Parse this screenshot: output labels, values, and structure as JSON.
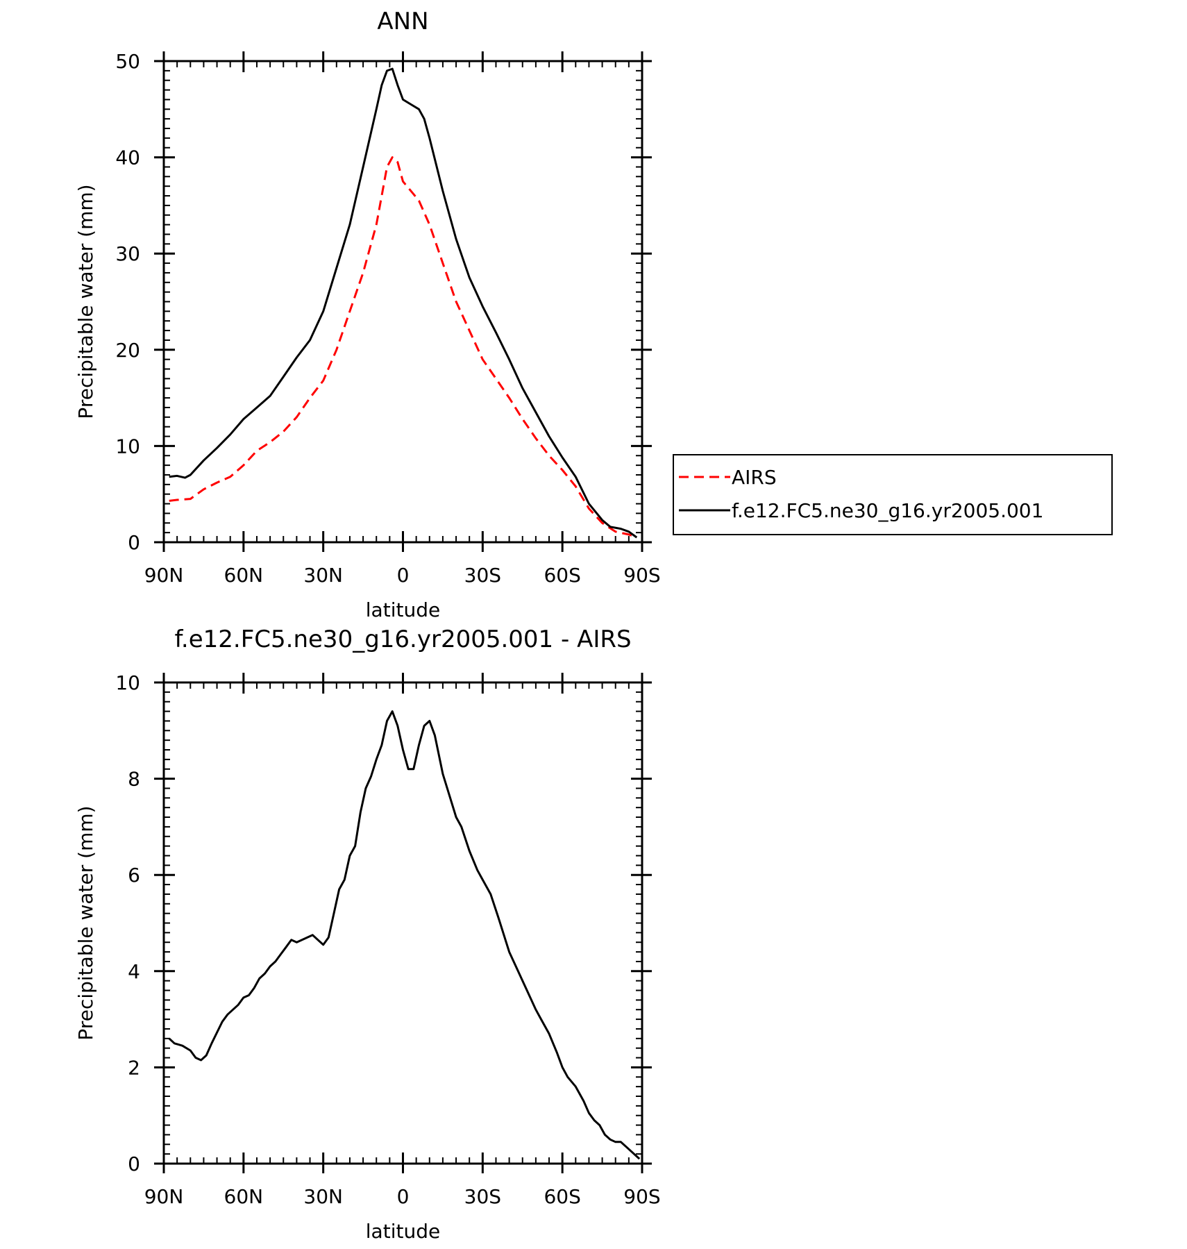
{
  "chart_data": [
    {
      "type": "line",
      "title": "ANN",
      "xlabel": "latitude",
      "ylabel": "Precipitable water (mm)",
      "xlim": [
        90,
        -90
      ],
      "ylim": [
        0,
        50
      ],
      "xticks": [
        90,
        60,
        30,
        0,
        -30,
        -60,
        -90
      ],
      "xticklabels": [
        "90N",
        "60N",
        "30N",
        "0",
        "30S",
        "60S",
        "90S"
      ],
      "yticks": [
        0,
        10,
        20,
        30,
        40,
        50
      ],
      "yticklabels": [
        "0",
        "10",
        "20",
        "30",
        "40",
        "50"
      ],
      "legend": {
        "placement": "right",
        "entries": [
          "AIRS",
          "f.e12.FC5.ne30_g16.yr2005.001"
        ]
      },
      "series": [
        {
          "name": "AIRS",
          "color": "#ff0000",
          "dash": "dashed",
          "points": [
            [
              88,
              4.3
            ],
            [
              85,
              4.4
            ],
            [
              80,
              4.5
            ],
            [
              75,
              5.5
            ],
            [
              70,
              6.2
            ],
            [
              65,
              6.8
            ],
            [
              60,
              8.0
            ],
            [
              55,
              9.5
            ],
            [
              50,
              10.4
            ],
            [
              45,
              11.5
            ],
            [
              40,
              13.0
            ],
            [
              35,
              15.0
            ],
            [
              30,
              16.8
            ],
            [
              25,
              20.0
            ],
            [
              20,
              24.0
            ],
            [
              15,
              28.0
            ],
            [
              10,
              33.0
            ],
            [
              8,
              36.0
            ],
            [
              6,
              39.0
            ],
            [
              4,
              40.0
            ],
            [
              2,
              39.5
            ],
            [
              0,
              37.5
            ],
            [
              -3,
              36.5
            ],
            [
              -6,
              35.5
            ],
            [
              -10,
              33.0
            ],
            [
              -15,
              29.0
            ],
            [
              -20,
              25.0
            ],
            [
              -25,
              22.0
            ],
            [
              -30,
              19.0
            ],
            [
              -35,
              17.0
            ],
            [
              -40,
              15.0
            ],
            [
              -45,
              12.8
            ],
            [
              -50,
              10.8
            ],
            [
              -55,
              9.0
            ],
            [
              -60,
              7.5
            ],
            [
              -65,
              5.8
            ],
            [
              -70,
              3.5
            ],
            [
              -75,
              2.0
            ],
            [
              -80,
              1.1
            ],
            [
              -85,
              0.8
            ],
            [
              -88,
              0.5
            ]
          ]
        },
        {
          "name": "f.e12.FC5.ne30_g16.yr2005.001",
          "color": "#000000",
          "dash": "solid",
          "points": [
            [
              88,
              6.8
            ],
            [
              85,
              6.9
            ],
            [
              82,
              6.7
            ],
            [
              80,
              7.0
            ],
            [
              75,
              8.5
            ],
            [
              70,
              9.8
            ],
            [
              65,
              11.2
            ],
            [
              60,
              12.8
            ],
            [
              55,
              14.0
            ],
            [
              50,
              15.2
            ],
            [
              45,
              17.2
            ],
            [
              40,
              19.2
            ],
            [
              35,
              21.0
            ],
            [
              30,
              24.0
            ],
            [
              25,
              28.5
            ],
            [
              20,
              33.0
            ],
            [
              15,
              39.0
            ],
            [
              10,
              45.0
            ],
            [
              8,
              47.5
            ],
            [
              6,
              49.0
            ],
            [
              4,
              49.2
            ],
            [
              2,
              47.5
            ],
            [
              0,
              46.0
            ],
            [
              -3,
              45.5
            ],
            [
              -6,
              45.0
            ],
            [
              -8,
              44.0
            ],
            [
              -10,
              42.0
            ],
            [
              -15,
              36.5
            ],
            [
              -20,
              31.5
            ],
            [
              -25,
              27.5
            ],
            [
              -30,
              24.5
            ],
            [
              -35,
              21.8
            ],
            [
              -40,
              19.0
            ],
            [
              -45,
              16.0
            ],
            [
              -50,
              13.5
            ],
            [
              -55,
              11.0
            ],
            [
              -60,
              8.8
            ],
            [
              -65,
              6.8
            ],
            [
              -70,
              4.0
            ],
            [
              -75,
              2.3
            ],
            [
              -78,
              1.6
            ],
            [
              -82,
              1.4
            ],
            [
              -85,
              1.1
            ],
            [
              -88,
              0.5
            ]
          ]
        }
      ]
    },
    {
      "type": "line",
      "title": "f.e12.FC5.ne30_g16.yr2005.001 - AIRS",
      "xlabel": "latitude",
      "ylabel": "Precipitable water (mm)",
      "xlim": [
        90,
        -90
      ],
      "ylim": [
        0,
        10
      ],
      "xticks": [
        90,
        60,
        30,
        0,
        -30,
        -60,
        -90
      ],
      "xticklabels": [
        "90N",
        "60N",
        "30N",
        "0",
        "30S",
        "60S",
        "90S"
      ],
      "yticks": [
        0,
        2,
        4,
        6,
        8,
        10
      ],
      "yticklabels": [
        "0",
        "2",
        "4",
        "6",
        "8",
        "10"
      ],
      "series": [
        {
          "color": "#000000",
          "dash": "solid",
          "points": [
            [
              88,
              2.6
            ],
            [
              86,
              2.5
            ],
            [
              83,
              2.45
            ],
            [
              80,
              2.35
            ],
            [
              78,
              2.2
            ],
            [
              76,
              2.15
            ],
            [
              74,
              2.25
            ],
            [
              72,
              2.5
            ],
            [
              68,
              2.95
            ],
            [
              66,
              3.1
            ],
            [
              62,
              3.3
            ],
            [
              60,
              3.45
            ],
            [
              58,
              3.5
            ],
            [
              56,
              3.65
            ],
            [
              54,
              3.85
            ],
            [
              52,
              3.95
            ],
            [
              50,
              4.1
            ],
            [
              48,
              4.2
            ],
            [
              46,
              4.35
            ],
            [
              44,
              4.5
            ],
            [
              42,
              4.65
            ],
            [
              40,
              4.6
            ],
            [
              36,
              4.7
            ],
            [
              34,
              4.75
            ],
            [
              32,
              4.65
            ],
            [
              30,
              4.55
            ],
            [
              28,
              4.7
            ],
            [
              26,
              5.2
            ],
            [
              24,
              5.7
            ],
            [
              22,
              5.9
            ],
            [
              20,
              6.4
            ],
            [
              18,
              6.6
            ],
            [
              16,
              7.3
            ],
            [
              14,
              7.8
            ],
            [
              12,
              8.05
            ],
            [
              10,
              8.4
            ],
            [
              8,
              8.7
            ],
            [
              6,
              9.2
            ],
            [
              4,
              9.4
            ],
            [
              2,
              9.1
            ],
            [
              0,
              8.6
            ],
            [
              -2,
              8.2
            ],
            [
              -4,
              8.2
            ],
            [
              -6,
              8.7
            ],
            [
              -8,
              9.1
            ],
            [
              -10,
              9.2
            ],
            [
              -12,
              8.9
            ],
            [
              -15,
              8.1
            ],
            [
              -20,
              7.2
            ],
            [
              -22,
              7.0
            ],
            [
              -25,
              6.5
            ],
            [
              -28,
              6.1
            ],
            [
              -30,
              5.9
            ],
            [
              -33,
              5.6
            ],
            [
              -36,
              5.1
            ],
            [
              -40,
              4.4
            ],
            [
              -45,
              3.8
            ],
            [
              -50,
              3.2
            ],
            [
              -52,
              3.0
            ],
            [
              -55,
              2.7
            ],
            [
              -58,
              2.3
            ],
            [
              -60,
              2.0
            ],
            [
              -62,
              1.8
            ],
            [
              -65,
              1.6
            ],
            [
              -68,
              1.3
            ],
            [
              -70,
              1.05
            ],
            [
              -72,
              0.9
            ],
            [
              -74,
              0.8
            ],
            [
              -76,
              0.6
            ],
            [
              -78,
              0.5
            ],
            [
              -80,
              0.45
            ],
            [
              -82,
              0.45
            ],
            [
              -84,
              0.35
            ],
            [
              -86,
              0.25
            ],
            [
              -88,
              0.15
            ],
            [
              -89,
              0.1
            ]
          ]
        }
      ]
    }
  ]
}
